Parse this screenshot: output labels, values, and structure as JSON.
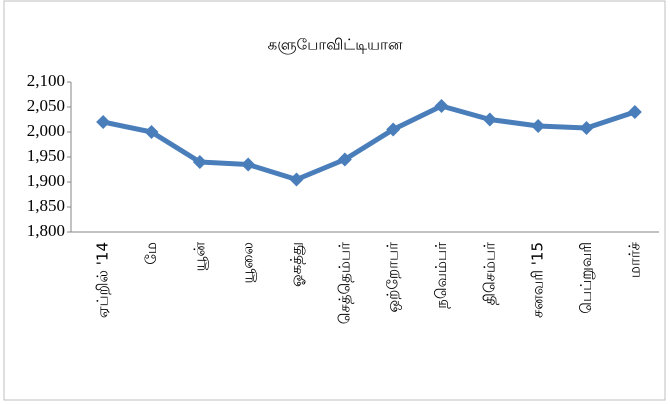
{
  "chart_data": {
    "type": "line",
    "title": "களுபோவிட்டியான",
    "categories": [
      "ஏப்றில் '14",
      "மே",
      "யூன்",
      "யூலை",
      "ஓகத்து",
      "செத்தெம்பர்",
      "ஒற்றோபர்",
      "நவெம்பர்",
      "திசெம்பர்",
      "சனவரி '15",
      "பெப்றுவரி",
      "மார்ச்"
    ],
    "values": [
      2020,
      2000,
      1940,
      1935,
      1905,
      1945,
      2005,
      2052,
      2025,
      2012,
      2008,
      2040
    ],
    "color": "#4a7ebb",
    "ylim": [
      1800,
      2100
    ],
    "yticks": [
      {
        "value": 1800,
        "label": "1,800"
      },
      {
        "value": 1850,
        "label": "1,850"
      },
      {
        "value": 1900,
        "label": "1,900"
      },
      {
        "value": 1950,
        "label": "1,950"
      },
      {
        "value": 2000,
        "label": "2,000"
      },
      {
        "value": 2050,
        "label": "2,050"
      },
      {
        "value": 2100,
        "label": "2,100"
      }
    ],
    "grid": false
  }
}
